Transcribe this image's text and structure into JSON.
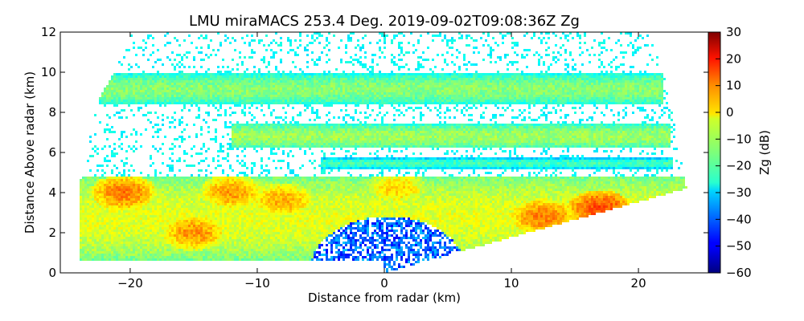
{
  "chart_data": {
    "type": "heatmap",
    "title": "LMU miraMACS 253.4 Deg. 2019-09-02T09:08:36Z  Zg",
    "xlabel": "Distance from radar (km)",
    "ylabel": "Distance Above radar  (km)",
    "xlim": [
      -25.5,
      25.5
    ],
    "ylim": [
      0,
      12
    ],
    "x_ticks": [
      -20,
      -10,
      0,
      10,
      20
    ],
    "x_tick_labels": [
      "−20",
      "−10",
      "0",
      "10",
      "20"
    ],
    "y_ticks": [
      0,
      2,
      4,
      6,
      8,
      10,
      12
    ],
    "y_tick_labels": [
      "0",
      "2",
      "4",
      "6",
      "8",
      "10",
      "12"
    ],
    "colorbar": {
      "label": "Zg (dB)",
      "range": [
        -60,
        30
      ],
      "colormap": "jet",
      "ticks": [
        30,
        20,
        10,
        0,
        -10,
        -20,
        -30,
        -40,
        -50,
        -60
      ],
      "tick_labels": [
        "30",
        "20",
        "10",
        "0",
        "−10",
        "−20",
        "−30",
        "−40",
        "−50",
        "−60"
      ]
    },
    "scan_sector": {
      "left_edge": [
        [
          -24.0,
          0.7
        ],
        [
          -24.0,
          4.3
        ],
        [
          -22.5,
          8.6
        ],
        [
          -21.0,
          10.3
        ],
        [
          -20.0,
          12.0
        ]
      ],
      "right_edge": [
        [
          0.0,
          0.0
        ],
        [
          23.8,
          4.2
        ],
        [
          22.0,
          10.0
        ],
        [
          21.0,
          12.0
        ]
      ]
    },
    "layers": [
      {
        "name": "upper cloud",
        "y_bottom": 8.4,
        "y_top": 9.9,
        "x_range": [
          -22.5,
          22.0
        ],
        "zg_db": -14
      },
      {
        "name": "mid cloud",
        "y_bottom": 6.2,
        "y_top": 7.4,
        "x_range": [
          -12.0,
          22.5
        ],
        "zg_db": -12
      },
      {
        "name": "thin layer",
        "y_bottom": 5.2,
        "y_top": 5.7,
        "x_range": [
          -5.0,
          22.8
        ],
        "zg_db": -20
      },
      {
        "name": "precipitation layer",
        "y_bottom": 0.6,
        "y_top": 4.8,
        "x_range": [
          -24.0,
          23.8
        ],
        "zg_db": -6
      },
      {
        "name": "clear region near radar",
        "y_bottom": 0.0,
        "y_top": 2.8,
        "x_range": [
          -6.0,
          6.5
        ],
        "zg_db": -40
      }
    ],
    "cells": [
      {
        "x": 17.0,
        "y": 3.2,
        "zg_db": 12
      },
      {
        "x": 12.5,
        "y": 2.8,
        "zg_db": 8
      },
      {
        "x": -12.0,
        "y": 4.0,
        "zg_db": 5
      },
      {
        "x": -15.0,
        "y": 2.0,
        "zg_db": 6
      },
      {
        "x": -20.5,
        "y": 4.0,
        "zg_db": 8
      },
      {
        "x": -8.0,
        "y": 3.6,
        "zg_db": 4
      },
      {
        "x": 1.0,
        "y": 4.2,
        "zg_db": 0
      },
      {
        "x": -0.5,
        "y": 0.5,
        "zg_db": -48
      },
      {
        "x": 0.5,
        "y": 2.0,
        "zg_db": -52
      }
    ]
  }
}
